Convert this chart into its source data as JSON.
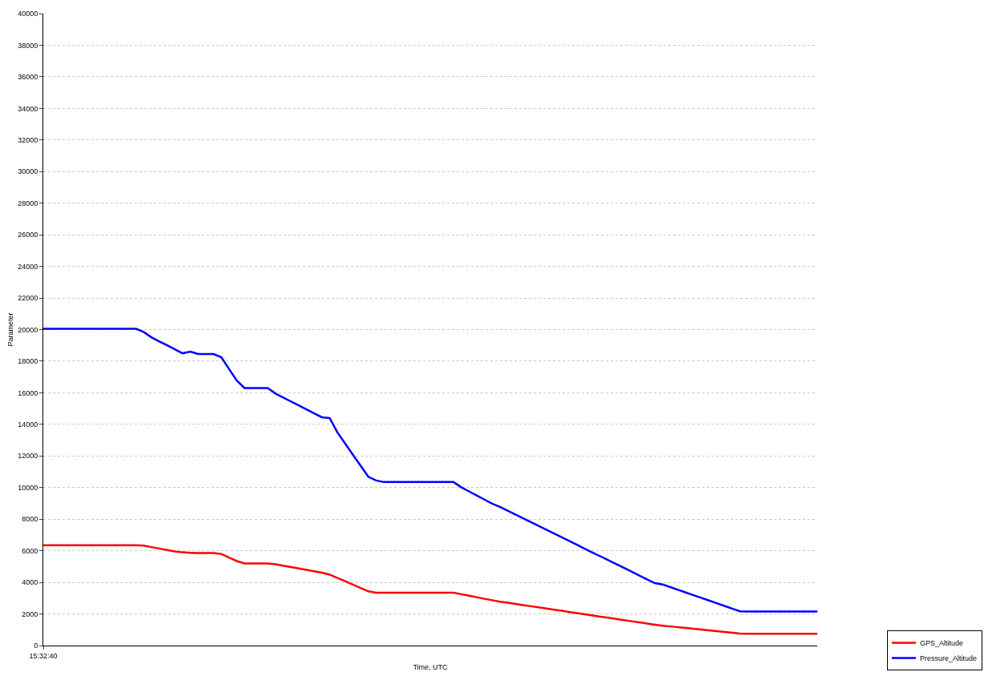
{
  "chart_data": {
    "type": "line",
    "xlabel": "Time, UTC",
    "ylabel": "Parameter",
    "categories": [
      "15:32:40",
      null,
      null,
      null,
      null,
      null,
      null,
      null,
      null,
      null,
      null,
      null,
      null,
      null,
      null,
      null,
      null,
      null,
      null,
      null,
      null,
      null,
      null,
      null,
      null,
      null,
      null,
      null,
      null,
      null,
      null,
      null,
      null,
      null,
      null,
      null,
      null,
      null,
      null,
      null,
      null,
      null,
      null,
      null,
      null,
      null,
      null,
      null,
      null,
      null,
      null,
      null,
      null,
      null,
      null,
      null,
      null,
      null,
      null,
      null,
      null,
      null,
      null,
      null,
      null,
      null,
      null,
      null,
      null,
      null,
      null,
      null,
      null,
      null,
      null,
      null,
      null,
      null,
      null,
      null,
      null,
      null,
      null,
      null,
      null,
      null,
      null,
      null,
      null,
      null,
      null,
      null,
      null,
      null,
      null,
      null,
      null,
      null,
      null,
      null,
      null
    ],
    "series": [
      {
        "name": "GPS_Altitude",
        "color": "#ff0000",
        "values": [
          6350,
          6350,
          6350,
          6350,
          6350,
          6350,
          6350,
          6350,
          6350,
          6350,
          6350,
          6350,
          6350,
          6320,
          6230,
          6140,
          6050,
          5960,
          5900,
          5870,
          5850,
          5850,
          5850,
          5800,
          5570,
          5350,
          5200,
          5200,
          5200,
          5200,
          5150,
          5060,
          4970,
          4880,
          4790,
          4700,
          4610,
          4490,
          4280,
          4070,
          3860,
          3640,
          3430,
          3350,
          3350,
          3350,
          3350,
          3350,
          3350,
          3350,
          3350,
          3350,
          3350,
          3350,
          3250,
          3160,
          3060,
          2960,
          2870,
          2780,
          2710,
          2640,
          2560,
          2490,
          2420,
          2340,
          2270,
          2200,
          2120,
          2050,
          1980,
          1900,
          1830,
          1760,
          1690,
          1610,
          1540,
          1470,
          1390,
          1320,
          1260,
          1210,
          1160,
          1110,
          1060,
          1010,
          960,
          910,
          860,
          810,
          760,
          750,
          750,
          750,
          750,
          750,
          750,
          750,
          750,
          750,
          750
        ]
      },
      {
        "name": "Pressure_Altitude",
        "color": "#0000ff",
        "values": [
          20050,
          20050,
          20050,
          20050,
          20050,
          20050,
          20050,
          20050,
          20050,
          20050,
          20050,
          20050,
          20050,
          19840,
          19500,
          19250,
          19000,
          18750,
          18500,
          18600,
          18450,
          18450,
          18450,
          18250,
          17510,
          16770,
          16300,
          16300,
          16300,
          16300,
          15950,
          15700,
          15450,
          15200,
          14950,
          14700,
          14450,
          14400,
          13490,
          12790,
          12080,
          11380,
          10680,
          10450,
          10350,
          10350,
          10350,
          10350,
          10350,
          10350,
          10350,
          10350,
          10350,
          10350,
          10020,
          9760,
          9500,
          9240,
          8980,
          8780,
          8540,
          8300,
          8060,
          7810,
          7570,
          7330,
          7090,
          6850,
          6610,
          6370,
          6120,
          5880,
          5640,
          5400,
          5160,
          4920,
          4680,
          4430,
          4190,
          3950,
          3870,
          3700,
          3530,
          3360,
          3190,
          3020,
          2850,
          2680,
          2510,
          2340,
          2170,
          2150,
          2150,
          2150,
          2150,
          2150,
          2150,
          2150,
          2150,
          2150,
          2150
        ]
      }
    ],
    "ylim": [
      0,
      40000
    ],
    "yticks": [
      0,
      2000,
      4000,
      6000,
      8000,
      10000,
      12000,
      14000,
      16000,
      18000,
      20000,
      22000,
      24000,
      26000,
      28000,
      30000,
      32000,
      34000,
      36000,
      38000,
      40000
    ],
    "grid": "y",
    "legend": "bottom right",
    "marker": "none",
    "line_style": "solid"
  }
}
